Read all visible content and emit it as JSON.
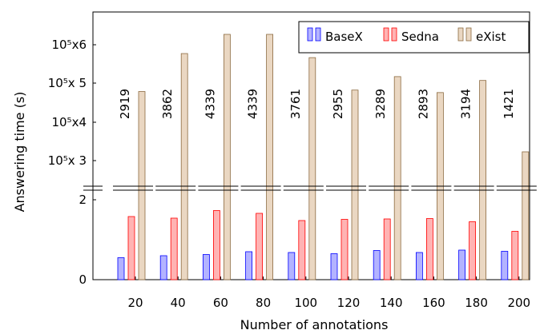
{
  "chart_data": {
    "type": "bar",
    "xlabel": "Number of annotations",
    "ylabel": "Answering time (s)",
    "categories": [
      "20",
      "40",
      "60",
      "80",
      "100",
      "120",
      "140",
      "160",
      "180",
      "200"
    ],
    "series": [
      {
        "name": "BaseX",
        "color": "#b3b3ff",
        "stroke": "#0000ff",
        "values": [
          0.55,
          0.6,
          0.63,
          0.7,
          0.68,
          0.65,
          0.73,
          0.68,
          0.74,
          0.71
        ]
      },
      {
        "name": "Sedna",
        "color": "#ffb3b3",
        "stroke": "#ff0000",
        "values": [
          1.58,
          1.54,
          1.73,
          1.66,
          1.48,
          1.51,
          1.52,
          1.53,
          1.45,
          1.21
        ]
      },
      {
        "name": "eXist",
        "color": "#ead7c2",
        "stroke": "#8c6a40",
        "values": [
          2919,
          3862,
          4339,
          4339,
          3761,
          2955,
          3289,
          2893,
          3194,
          1421
        ]
      }
    ],
    "value_labels": [
      "2919",
      "3862",
      "4339",
      "4339",
      "3761",
      "2955",
      "3289",
      "2893",
      "3194",
      "1421"
    ],
    "lower_axis": {
      "ylim": [
        0,
        2.4
      ],
      "ticks": [
        0,
        2
      ]
    },
    "upper_axis": {
      "ticks": [
        "10⁵x 3",
        "10⁵x4",
        "10⁵x 5",
        "10⁵x6"
      ],
      "note": "broken y-axis; eXist bars extend into upper segment"
    },
    "legend": "top-right"
  }
}
